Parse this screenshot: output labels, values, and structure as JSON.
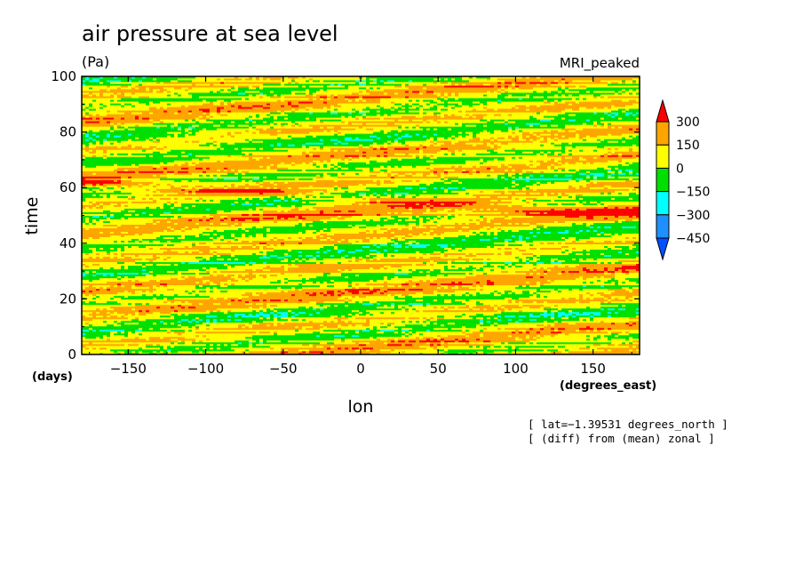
{
  "chart_data": {
    "type": "heatmap",
    "title": "air pressure at sea level",
    "units": "(Pa)",
    "model": "MRI_peaked",
    "xlabel": "lon",
    "x_units": "(degrees_east)",
    "ylabel": "time",
    "y_units": "(days)",
    "xlim": [
      -180,
      180
    ],
    "ylim": [
      0,
      100
    ],
    "x_ticks": [
      -150,
      -100,
      -50,
      0,
      50,
      100,
      150
    ],
    "x_tick_labels": [
      "−150",
      "−100",
      "−50",
      "0",
      "50",
      "100",
      "150"
    ],
    "y_ticks": [
      0,
      20,
      40,
      60,
      80,
      100
    ],
    "y_tick_labels": [
      "0",
      "20",
      "40",
      "60",
      "80",
      "100"
    ],
    "notes": [
      "[ lat=−1.39531 degrees_north ]",
      "[ (diff) from (mean) zonal ]"
    ],
    "colorbar": {
      "levels": [
        300,
        150,
        0,
        -150,
        -300,
        -450
      ],
      "level_labels": [
        "300",
        "150",
        "0",
        "−150",
        "−300",
        "−450"
      ],
      "colors": [
        "#ff0000",
        "#ffa500",
        "#ffff00",
        "#00e000",
        "#00ffff",
        "#1e90ff",
        "#0050ff"
      ],
      "extend": "both"
    }
  }
}
